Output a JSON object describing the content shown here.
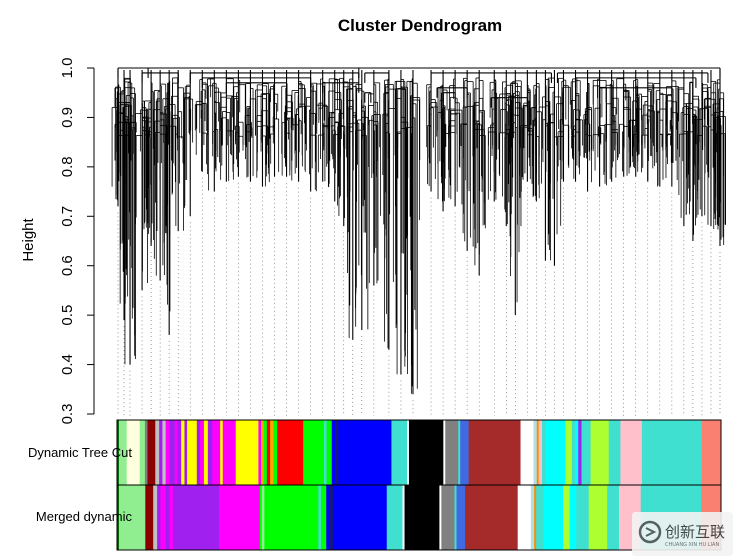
{
  "chart_data": {
    "type": "dendrogram",
    "title": "Cluster Dendrogram",
    "xlabel": "",
    "ylabel": "Height",
    "ylim": [
      0.3,
      1.0
    ],
    "yticks": [
      0.3,
      0.4,
      0.5,
      0.6,
      0.7,
      0.8,
      0.9,
      1.0
    ],
    "ytick_labels": [
      "0.3",
      "0.4",
      "0.5",
      "0.6",
      "0.7",
      "0.8",
      "0.9",
      "1.0"
    ],
    "grid": false,
    "leaf_drops": [
      {
        "x": 0.0,
        "h": 0.72
      },
      {
        "x": 0.01,
        "h": 0.49
      },
      {
        "x": 0.02,
        "h": 0.4
      },
      {
        "x": 0.04,
        "h": 0.55
      },
      {
        "x": 0.055,
        "h": 0.64
      },
      {
        "x": 0.07,
        "h": 0.57
      },
      {
        "x": 0.085,
        "h": 0.46
      },
      {
        "x": 0.1,
        "h": 0.67
      },
      {
        "x": 0.12,
        "h": 0.7
      },
      {
        "x": 0.14,
        "h": 0.79
      },
      {
        "x": 0.16,
        "h": 0.75
      },
      {
        "x": 0.18,
        "h": 0.77
      },
      {
        "x": 0.2,
        "h": 0.78
      },
      {
        "x": 0.22,
        "h": 0.77
      },
      {
        "x": 0.24,
        "h": 0.76
      },
      {
        "x": 0.26,
        "h": 0.78
      },
      {
        "x": 0.28,
        "h": 0.78
      },
      {
        "x": 0.3,
        "h": 0.77
      },
      {
        "x": 0.32,
        "h": 0.75
      },
      {
        "x": 0.34,
        "h": 0.77
      },
      {
        "x": 0.36,
        "h": 0.73
      },
      {
        "x": 0.375,
        "h": 0.68
      },
      {
        "x": 0.39,
        "h": 0.45
      },
      {
        "x": 0.405,
        "h": 0.47
      },
      {
        "x": 0.425,
        "h": 0.56
      },
      {
        "x": 0.45,
        "h": 0.43
      },
      {
        "x": 0.47,
        "h": 0.38
      },
      {
        "x": 0.49,
        "h": 0.34
      },
      {
        "x": 0.52,
        "h": 0.75
      },
      {
        "x": 0.54,
        "h": 0.71
      },
      {
        "x": 0.56,
        "h": 0.72
      },
      {
        "x": 0.58,
        "h": 0.63
      },
      {
        "x": 0.6,
        "h": 0.58
      },
      {
        "x": 0.625,
        "h": 0.73
      },
      {
        "x": 0.645,
        "h": 0.68
      },
      {
        "x": 0.66,
        "h": 0.5
      },
      {
        "x": 0.68,
        "h": 0.77
      },
      {
        "x": 0.695,
        "h": 0.73
      },
      {
        "x": 0.71,
        "h": 0.61
      },
      {
        "x": 0.725,
        "h": 0.6
      },
      {
        "x": 0.74,
        "h": 0.77
      },
      {
        "x": 0.76,
        "h": 0.77
      },
      {
        "x": 0.78,
        "h": 0.75
      },
      {
        "x": 0.8,
        "h": 0.76
      },
      {
        "x": 0.82,
        "h": 0.77
      },
      {
        "x": 0.84,
        "h": 0.78
      },
      {
        "x": 0.86,
        "h": 0.78
      },
      {
        "x": 0.88,
        "h": 0.77
      },
      {
        "x": 0.9,
        "h": 0.76
      },
      {
        "x": 0.92,
        "h": 0.76
      },
      {
        "x": 0.94,
        "h": 0.68
      },
      {
        "x": 0.955,
        "h": 0.65
      },
      {
        "x": 0.97,
        "h": 0.7
      },
      {
        "x": 0.985,
        "h": 0.68
      },
      {
        "x": 1.0,
        "h": 0.64
      }
    ],
    "merges": [
      {
        "x1": 0.0,
        "x2": 0.03,
        "h": 0.89
      },
      {
        "x1": 0.01,
        "x2": 0.02,
        "h": 0.93
      },
      {
        "x1": 0.04,
        "x2": 0.1,
        "h": 0.99
      },
      {
        "x1": 0.12,
        "x2": 0.4,
        "h": 0.99
      },
      {
        "x1": 0.14,
        "x2": 0.32,
        "h": 0.98
      },
      {
        "x1": 0.18,
        "x2": 0.28,
        "h": 0.97
      },
      {
        "x1": 0.34,
        "x2": 0.4,
        "h": 0.97
      },
      {
        "x1": 0.05,
        "x2": 0.4,
        "h": 1.0
      },
      {
        "x1": 0.41,
        "x2": 0.45,
        "h": 0.99
      },
      {
        "x1": 0.41,
        "x2": 0.42,
        "h": 0.95
      },
      {
        "x1": 0.52,
        "x2": 0.72,
        "h": 0.99
      },
      {
        "x1": 0.53,
        "x2": 0.58,
        "h": 0.96
      },
      {
        "x1": 0.54,
        "x2": 0.56,
        "h": 0.95
      },
      {
        "x1": 0.62,
        "x2": 0.68,
        "h": 0.94
      },
      {
        "x1": 0.73,
        "x2": 0.98,
        "h": 0.99
      },
      {
        "x1": 0.76,
        "x2": 0.96,
        "h": 0.98
      },
      {
        "x1": 0.8,
        "x2": 0.92,
        "h": 0.96
      },
      {
        "x1": 0.0,
        "x2": 1.0,
        "h": 1.0
      }
    ],
    "color_rows": [
      {
        "label": "Dynamic Tree Cut",
        "segments": [
          {
            "c": "#006400",
            "w": 0.3
          },
          {
            "c": "#90ee90",
            "w": 1.2
          },
          {
            "c": "#ffffe0",
            "w": 2.0
          },
          {
            "c": "#90ee90",
            "w": 0.8
          },
          {
            "c": "#808080",
            "w": 0.4
          },
          {
            "c": "#8b0000",
            "w": 1.2
          },
          {
            "c": "#c0c0c0",
            "w": 0.6
          },
          {
            "c": "#a020f0",
            "w": 0.5
          },
          {
            "c": "#c0c0c0",
            "w": 0.5
          },
          {
            "c": "#ff00ff",
            "w": 0.6
          },
          {
            "c": "#a020f0",
            "w": 0.8
          },
          {
            "c": "#ff00ff",
            "w": 0.4
          },
          {
            "c": "#a020f0",
            "w": 0.6
          },
          {
            "c": "#ffff00",
            "w": 0.5
          },
          {
            "c": "#a020f0",
            "w": 0.4
          },
          {
            "c": "#ffff00",
            "w": 1.5
          },
          {
            "c": "#a020f0",
            "w": 0.5
          },
          {
            "c": "#ff00ff",
            "w": 0.6
          },
          {
            "c": "#ffff00",
            "w": 0.6
          },
          {
            "c": "#a020f0",
            "w": 0.7
          },
          {
            "c": "#ff00ff",
            "w": 1.2
          },
          {
            "c": "#ffff00",
            "w": 0.4
          },
          {
            "c": "#ff00ff",
            "w": 2.0
          },
          {
            "c": "#ffff00",
            "w": 3.5
          },
          {
            "c": "#ff00ff",
            "w": 0.4
          },
          {
            "c": "#ffa500",
            "w": 0.4
          },
          {
            "c": "#00ff00",
            "w": 0.5
          },
          {
            "c": "#ff0000",
            "w": 0.5
          },
          {
            "c": "#ffa500",
            "w": 0.5
          },
          {
            "c": "#00ff00",
            "w": 0.6
          },
          {
            "c": "#ff0000",
            "w": 4.0
          },
          {
            "c": "#00ff00",
            "w": 3.2
          },
          {
            "c": "#40e0d0",
            "w": 0.4
          },
          {
            "c": "#00ff00",
            "w": 0.8
          },
          {
            "c": "#0000ff",
            "w": 0.5
          },
          {
            "c": "#191970",
            "w": 0.5
          },
          {
            "c": "#0000ff",
            "w": 8.2
          },
          {
            "c": "#40e0d0",
            "w": 2.4
          },
          {
            "c": "#ffffff",
            "w": 0.3
          },
          {
            "c": "#000000",
            "w": 5.3
          },
          {
            "c": "#ffffff",
            "w": 0.3
          },
          {
            "c": "#808080",
            "w": 2.0
          },
          {
            "c": "#40e0d0",
            "w": 0.3
          },
          {
            "c": "#4169e1",
            "w": 1.3
          },
          {
            "c": "#a52a2a",
            "w": 8.0
          },
          {
            "c": "#ffffff",
            "w": 2.0
          },
          {
            "c": "#b0e0e6",
            "w": 0.5
          },
          {
            "c": "#ff8c00",
            "w": 0.3
          },
          {
            "c": "#ffc0cb",
            "w": 0.5
          },
          {
            "c": "#40e0d0",
            "w": 0.6
          },
          {
            "c": "#00ffff",
            "w": 3.0
          },
          {
            "c": "#adff2f",
            "w": 1.0
          },
          {
            "c": "#40e0d0",
            "w": 0.5
          },
          {
            "c": "#00ffff",
            "w": 0.5
          },
          {
            "c": "#a020f0",
            "w": 0.5
          },
          {
            "c": "#40e0d0",
            "w": 1.4
          },
          {
            "c": "#adff2f",
            "w": 2.8
          },
          {
            "c": "#40e0d0",
            "w": 1.8
          },
          {
            "c": "#ffc0cb",
            "w": 3.3
          },
          {
            "c": "#40e0d0",
            "w": 9.2
          },
          {
            "c": "#fa8072",
            "w": 3.0
          }
        ]
      },
      {
        "label": "Merged dynamic",
        "segments": [
          {
            "c": "#006400",
            "w": 0.3
          },
          {
            "c": "#90ee90",
            "w": 4.0
          },
          {
            "c": "#8b0000",
            "w": 1.2
          },
          {
            "c": "#c0c0c0",
            "w": 0.6
          },
          {
            "c": "#a020f0",
            "w": 0.5
          },
          {
            "c": "#ff00ff",
            "w": 0.8
          },
          {
            "c": "#a020f0",
            "w": 0.6
          },
          {
            "c": "#ff00ff",
            "w": 0.5
          },
          {
            "c": "#a020f0",
            "w": 7.0
          },
          {
            "c": "#ff00ff",
            "w": 5.0
          },
          {
            "c": "#ff00ff",
            "w": 1.2
          },
          {
            "c": "#00ff00",
            "w": 0.3
          },
          {
            "c": "#90ee90",
            "w": 0.4
          },
          {
            "c": "#00ff00",
            "w": 8.2
          },
          {
            "c": "#40e0d0",
            "w": 0.4
          },
          {
            "c": "#00ff00",
            "w": 0.8
          },
          {
            "c": "#0000ff",
            "w": 0.5
          },
          {
            "c": "#191970",
            "w": 0.5
          },
          {
            "c": "#0000ff",
            "w": 8.2
          },
          {
            "c": "#40e0d0",
            "w": 2.4
          },
          {
            "c": "#ffffff",
            "w": 0.3
          },
          {
            "c": "#000000",
            "w": 5.3
          },
          {
            "c": "#ffffff",
            "w": 0.3
          },
          {
            "c": "#808080",
            "w": 2.0
          },
          {
            "c": "#40e0d0",
            "w": 0.3
          },
          {
            "c": "#4169e1",
            "w": 1.3
          },
          {
            "c": "#a52a2a",
            "w": 8.0
          },
          {
            "c": "#ffffff",
            "w": 2.0
          },
          {
            "c": "#b0e0e6",
            "w": 0.5
          },
          {
            "c": "#ff8c00",
            "w": 0.3
          },
          {
            "c": "#40e0d0",
            "w": 1.1
          },
          {
            "c": "#00ffff",
            "w": 3.0
          },
          {
            "c": "#adff2f",
            "w": 1.0
          },
          {
            "c": "#00ffff",
            "w": 1.0
          },
          {
            "c": "#40e0d0",
            "w": 1.9
          },
          {
            "c": "#adff2f",
            "w": 2.8
          },
          {
            "c": "#40e0d0",
            "w": 1.8
          },
          {
            "c": "#ffc0cb",
            "w": 3.3
          },
          {
            "c": "#40e0d0",
            "w": 9.2
          },
          {
            "c": "#fa8072",
            "w": 3.0
          }
        ]
      }
    ]
  },
  "watermark": {
    "text": "创新互联",
    "subtext": "CHUANG XIN HU LIAN"
  },
  "colors": {
    "tree": "#000000",
    "axis": "#000000",
    "leaf_dots": "#555555"
  }
}
